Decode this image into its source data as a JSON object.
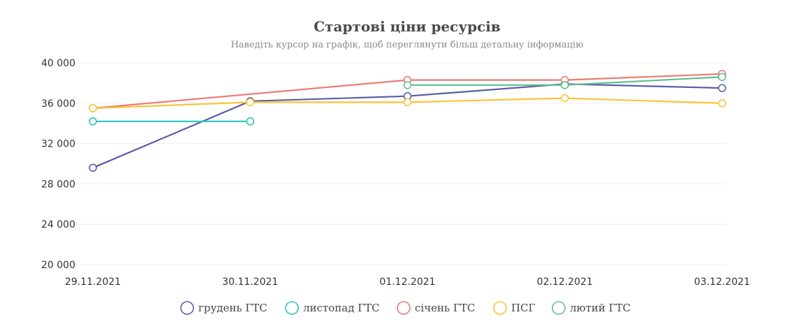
{
  "chart_data": {
    "type": "line",
    "title": "Стартові ціни ресурсів",
    "subtitle": "Наведіть курсор на графік, щоб переглянути більш детальну інформацію",
    "categories": [
      "29.11.2021",
      "30.11.2021",
      "01.12.2021",
      "02.12.2021",
      "03.12.2021"
    ],
    "y_ticks": [
      "20 000",
      "24 000",
      "28 000",
      "32 000",
      "36 000",
      "40 000"
    ],
    "ylim": [
      20000,
      40000
    ],
    "grid": true,
    "legend_position": "bottom",
    "series": [
      {
        "name": "грудень ГТС",
        "color": "#5b5ea6",
        "values": [
          29600,
          36200,
          36700,
          37900,
          37500
        ]
      },
      {
        "name": "листопад ГТС",
        "color": "#2ec4c0",
        "values": [
          34200,
          34200,
          null,
          null,
          null
        ]
      },
      {
        "name": "січень ГТС",
        "color": "#ec7b75",
        "values": [
          35500,
          null,
          38300,
          38300,
          38900
        ]
      },
      {
        "name": "ПСГ",
        "color": "#f8c53a",
        "values": [
          35500,
          36100,
          36100,
          36500,
          36000
        ]
      },
      {
        "name": "лютий ГТС",
        "color": "#5fbf8f",
        "values": [
          null,
          null,
          37800,
          37800,
          38600
        ]
      }
    ]
  }
}
